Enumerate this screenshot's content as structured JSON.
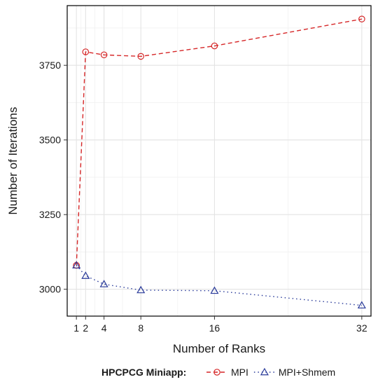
{
  "chart_data": {
    "type": "line",
    "xlabel": "Number of Ranks",
    "ylabel": "Number of Iterations",
    "x_ticks": [
      1,
      2,
      4,
      8,
      16,
      32
    ],
    "y_ticks": [
      3000,
      3250,
      3500,
      3750
    ],
    "xlim": [
      0,
      33
    ],
    "ylim": [
      2910,
      3950
    ],
    "grid": true,
    "legend": {
      "title": "HPCPCG Miniapp:",
      "position": "bottom"
    },
    "series": [
      {
        "name": "MPI",
        "color": "#d62728",
        "marker": "circle",
        "line_style": "dashed",
        "x": [
          1,
          2,
          4,
          8,
          16,
          32
        ],
        "y": [
          3080,
          3795,
          3785,
          3780,
          3815,
          3905
        ]
      },
      {
        "name": "MPI+Shmem",
        "color": "#2a3b9a",
        "marker": "triangle",
        "line_style": "dotted",
        "x": [
          1,
          2,
          4,
          8,
          16,
          32
        ],
        "y": [
          3080,
          3045,
          3017,
          2997,
          2995,
          2946
        ]
      }
    ]
  }
}
